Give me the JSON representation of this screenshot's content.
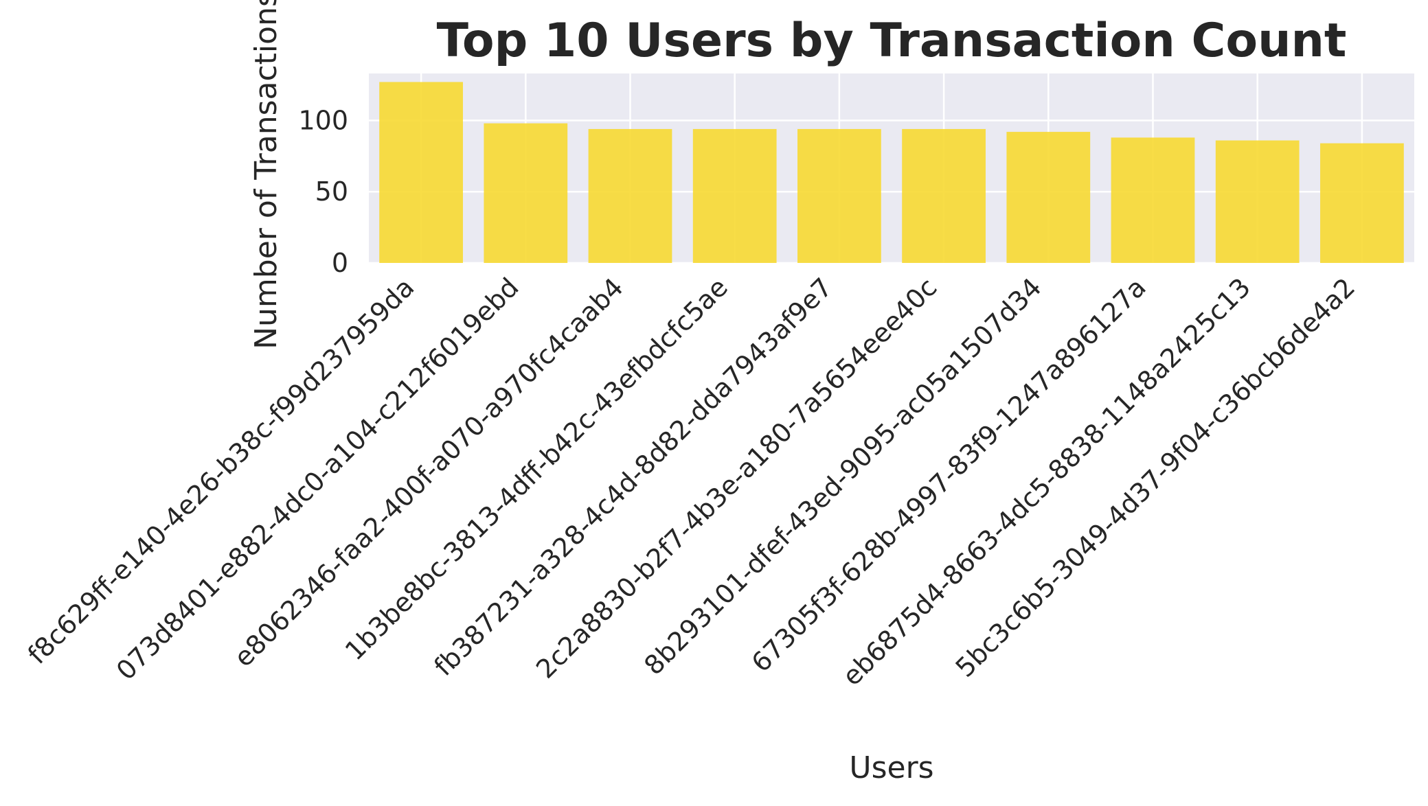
{
  "colors": {
    "bar": "#f7d932",
    "plot_background": "#eaeaf2",
    "grid": "#ffffff",
    "text": "#262626"
  },
  "chart_data": {
    "type": "bar",
    "title": "Top 10 Users by Transaction Count",
    "xlabel": "Users",
    "ylabel": "Number of Transactions",
    "grid": true,
    "ylim": [
      0,
      133
    ],
    "yticks": [
      0,
      50,
      100
    ],
    "categories": [
      "f8c629ff-e140-4e26-b38c-f99d237959da",
      "073d8401-e882-4dc0-a104-c212f6019ebd",
      "e8062346-faa2-400f-a070-a970fc4caab4",
      "1b3be8bc-3813-4dff-b42c-43efbdcfc5ae",
      "fb387231-a328-4c4d-8d82-dda7943af9e7",
      "2c2a8830-b2f7-4b3e-a180-7a5654eee40c",
      "8b293101-dfef-43ed-9095-ac05a1507d34",
      "67305f3f-628b-4997-83f9-1247a896127a",
      "eb6875d4-8663-4dc5-8838-1148a2425c13",
      "5bc3c6b5-3049-4d37-9f04-c36bcb6de4a2"
    ],
    "values": [
      127,
      98,
      94,
      94,
      94,
      94,
      92,
      88,
      86,
      84
    ]
  }
}
